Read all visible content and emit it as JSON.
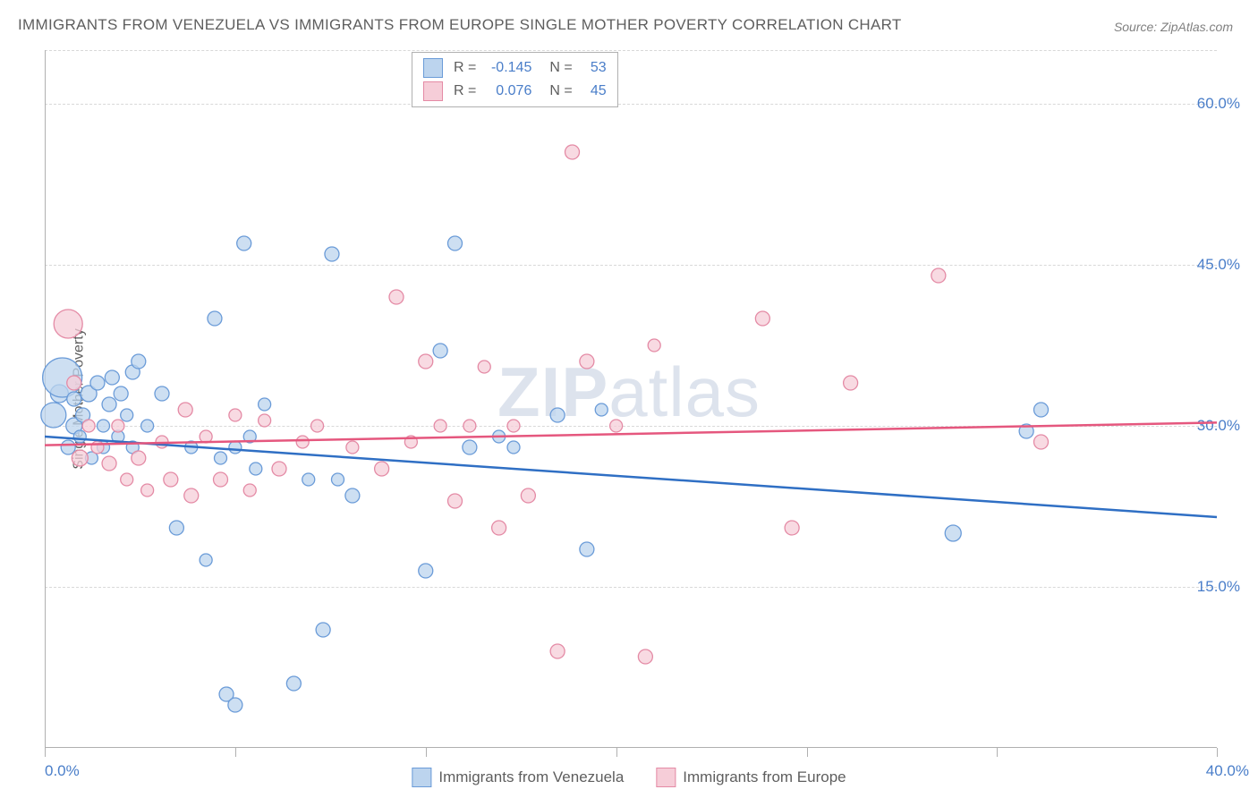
{
  "title": "IMMIGRANTS FROM VENEZUELA VS IMMIGRANTS FROM EUROPE SINGLE MOTHER POVERTY CORRELATION CHART",
  "source": "Source: ZipAtlas.com",
  "ylabel": "Single Mother Poverty",
  "watermark_a": "ZIP",
  "watermark_b": "atlas",
  "chart": {
    "type": "scatter",
    "xlim": [
      0,
      40
    ],
    "ylim": [
      0,
      65
    ],
    "xtick_positions": [
      0,
      6.5,
      13,
      19.5,
      26,
      32.5,
      40
    ],
    "xtick_labels_shown": {
      "0": "0.0%",
      "40": "40.0%"
    },
    "ytick_positions": [
      15,
      30,
      45,
      60,
      65
    ],
    "ytick_labels": {
      "15": "15.0%",
      "30": "30.0%",
      "45": "45.0%",
      "60": "60.0%"
    },
    "grid_color": "#d8d8d8",
    "axis_color": "#b0b0b0",
    "background_color": "#ffffff",
    "series": [
      {
        "name": "Immigrants from Venezuela",
        "color_fill": "#bcd4ee",
        "color_stroke": "#6a9bd8",
        "opacity": 0.75,
        "R": "-0.145",
        "N": "53",
        "trend": {
          "y_at_x0": 29.0,
          "y_at_xmax": 21.5,
          "color": "#2f6fc4",
          "width": 2.5
        },
        "points": [
          {
            "x": 0.3,
            "y": 31,
            "r": 14
          },
          {
            "x": 0.5,
            "y": 33,
            "r": 10
          },
          {
            "x": 0.6,
            "y": 34.5,
            "r": 22
          },
          {
            "x": 0.8,
            "y": 28,
            "r": 8
          },
          {
            "x": 1.0,
            "y": 30,
            "r": 9
          },
          {
            "x": 1.0,
            "y": 32.5,
            "r": 8
          },
          {
            "x": 1.2,
            "y": 29,
            "r": 7
          },
          {
            "x": 1.3,
            "y": 31,
            "r": 8
          },
          {
            "x": 1.5,
            "y": 33,
            "r": 9
          },
          {
            "x": 1.6,
            "y": 27,
            "r": 7
          },
          {
            "x": 1.8,
            "y": 34,
            "r": 8
          },
          {
            "x": 2.0,
            "y": 30,
            "r": 7
          },
          {
            "x": 2.0,
            "y": 28,
            "r": 7
          },
          {
            "x": 2.2,
            "y": 32,
            "r": 8
          },
          {
            "x": 2.3,
            "y": 34.5,
            "r": 8
          },
          {
            "x": 2.5,
            "y": 29,
            "r": 7
          },
          {
            "x": 2.6,
            "y": 33,
            "r": 8
          },
          {
            "x": 2.8,
            "y": 31,
            "r": 7
          },
          {
            "x": 3.0,
            "y": 35,
            "r": 8
          },
          {
            "x": 3.0,
            "y": 28,
            "r": 7
          },
          {
            "x": 3.2,
            "y": 36,
            "r": 8
          },
          {
            "x": 3.5,
            "y": 30,
            "r": 7
          },
          {
            "x": 4.0,
            "y": 33,
            "r": 8
          },
          {
            "x": 4.5,
            "y": 20.5,
            "r": 8
          },
          {
            "x": 5.0,
            "y": 28,
            "r": 7
          },
          {
            "x": 5.5,
            "y": 17.5,
            "r": 7
          },
          {
            "x": 5.8,
            "y": 40,
            "r": 8
          },
          {
            "x": 6.0,
            "y": 27,
            "r": 7
          },
          {
            "x": 6.2,
            "y": 5,
            "r": 8
          },
          {
            "x": 6.5,
            "y": 4,
            "r": 8
          },
          {
            "x": 6.5,
            "y": 28,
            "r": 7
          },
          {
            "x": 6.8,
            "y": 47,
            "r": 8
          },
          {
            "x": 7.0,
            "y": 29,
            "r": 7
          },
          {
            "x": 7.2,
            "y": 26,
            "r": 7
          },
          {
            "x": 7.5,
            "y": 32,
            "r": 7
          },
          {
            "x": 8.5,
            "y": 6,
            "r": 8
          },
          {
            "x": 9.0,
            "y": 25,
            "r": 7
          },
          {
            "x": 9.5,
            "y": 11,
            "r": 8
          },
          {
            "x": 9.8,
            "y": 46,
            "r": 8
          },
          {
            "x": 10.0,
            "y": 25,
            "r": 7
          },
          {
            "x": 10.5,
            "y": 23.5,
            "r": 8
          },
          {
            "x": 13.0,
            "y": 16.5,
            "r": 8
          },
          {
            "x": 13.5,
            "y": 37,
            "r": 8
          },
          {
            "x": 14.0,
            "y": 47,
            "r": 8
          },
          {
            "x": 14.5,
            "y": 28,
            "r": 8
          },
          {
            "x": 15.5,
            "y": 29,
            "r": 7
          },
          {
            "x": 16.0,
            "y": 28,
            "r": 7
          },
          {
            "x": 17.5,
            "y": 31,
            "r": 8
          },
          {
            "x": 18.5,
            "y": 18.5,
            "r": 8
          },
          {
            "x": 19.0,
            "y": 31.5,
            "r": 7
          },
          {
            "x": 31.0,
            "y": 20,
            "r": 9
          },
          {
            "x": 33.5,
            "y": 29.5,
            "r": 8
          },
          {
            "x": 34.0,
            "y": 31.5,
            "r": 8
          }
        ]
      },
      {
        "name": "Immigrants from Europe",
        "color_fill": "#f6cdd8",
        "color_stroke": "#e48aa5",
        "opacity": 0.75,
        "R": "0.076",
        "N": "45",
        "trend": {
          "y_at_x0": 28.2,
          "y_at_xmax": 30.3,
          "color": "#e5577e",
          "width": 2.5
        },
        "points": [
          {
            "x": 0.8,
            "y": 39.5,
            "r": 16
          },
          {
            "x": 1.0,
            "y": 34,
            "r": 8
          },
          {
            "x": 1.2,
            "y": 27,
            "r": 9
          },
          {
            "x": 1.5,
            "y": 30,
            "r": 7
          },
          {
            "x": 1.8,
            "y": 28,
            "r": 7
          },
          {
            "x": 2.2,
            "y": 26.5,
            "r": 8
          },
          {
            "x": 2.5,
            "y": 30,
            "r": 7
          },
          {
            "x": 2.8,
            "y": 25,
            "r": 7
          },
          {
            "x": 3.2,
            "y": 27,
            "r": 8
          },
          {
            "x": 3.5,
            "y": 24,
            "r": 7
          },
          {
            "x": 4.0,
            "y": 28.5,
            "r": 7
          },
          {
            "x": 4.3,
            "y": 25,
            "r": 8
          },
          {
            "x": 4.8,
            "y": 31.5,
            "r": 8
          },
          {
            "x": 5.0,
            "y": 23.5,
            "r": 8
          },
          {
            "x": 5.5,
            "y": 29,
            "r": 7
          },
          {
            "x": 6.0,
            "y": 25,
            "r": 8
          },
          {
            "x": 6.5,
            "y": 31,
            "r": 7
          },
          {
            "x": 7.0,
            "y": 24,
            "r": 7
          },
          {
            "x": 7.5,
            "y": 30.5,
            "r": 7
          },
          {
            "x": 8.0,
            "y": 26,
            "r": 8
          },
          {
            "x": 8.8,
            "y": 28.5,
            "r": 7
          },
          {
            "x": 9.3,
            "y": 30,
            "r": 7
          },
          {
            "x": 10.5,
            "y": 28,
            "r": 7
          },
          {
            "x": 11.5,
            "y": 26,
            "r": 8
          },
          {
            "x": 12.0,
            "y": 42,
            "r": 8
          },
          {
            "x": 12.5,
            "y": 28.5,
            "r": 7
          },
          {
            "x": 13.0,
            "y": 36,
            "r": 8
          },
          {
            "x": 13.5,
            "y": 30,
            "r": 7
          },
          {
            "x": 14.0,
            "y": 23,
            "r": 8
          },
          {
            "x": 14.5,
            "y": 30,
            "r": 7
          },
          {
            "x": 15.0,
            "y": 35.5,
            "r": 7
          },
          {
            "x": 15.5,
            "y": 20.5,
            "r": 8
          },
          {
            "x": 16.0,
            "y": 30,
            "r": 7
          },
          {
            "x": 16.5,
            "y": 23.5,
            "r": 8
          },
          {
            "x": 17.5,
            "y": 9,
            "r": 8
          },
          {
            "x": 18.0,
            "y": 55.5,
            "r": 8
          },
          {
            "x": 18.5,
            "y": 36,
            "r": 8
          },
          {
            "x": 19.5,
            "y": 30,
            "r": 7
          },
          {
            "x": 20.5,
            "y": 8.5,
            "r": 8
          },
          {
            "x": 20.8,
            "y": 37.5,
            "r": 7
          },
          {
            "x": 24.5,
            "y": 40,
            "r": 8
          },
          {
            "x": 25.5,
            "y": 20.5,
            "r": 8
          },
          {
            "x": 27.5,
            "y": 34,
            "r": 8
          },
          {
            "x": 30.5,
            "y": 44,
            "r": 8
          },
          {
            "x": 34.0,
            "y": 28.5,
            "r": 8
          }
        ]
      }
    ]
  },
  "legend_top": [
    {
      "swatch_fill": "#bcd4ee",
      "swatch_stroke": "#6a9bd8",
      "R": "-0.145",
      "N": "53"
    },
    {
      "swatch_fill": "#f6cdd8",
      "swatch_stroke": "#e48aa5",
      "R": "0.076",
      "N": "45"
    }
  ],
  "bottom_legend": [
    {
      "swatch_fill": "#bcd4ee",
      "swatch_stroke": "#6a9bd8",
      "label": "Immigrants from Venezuela"
    },
    {
      "swatch_fill": "#f6cdd8",
      "swatch_stroke": "#e48aa5",
      "label": "Immigrants from Europe"
    }
  ]
}
